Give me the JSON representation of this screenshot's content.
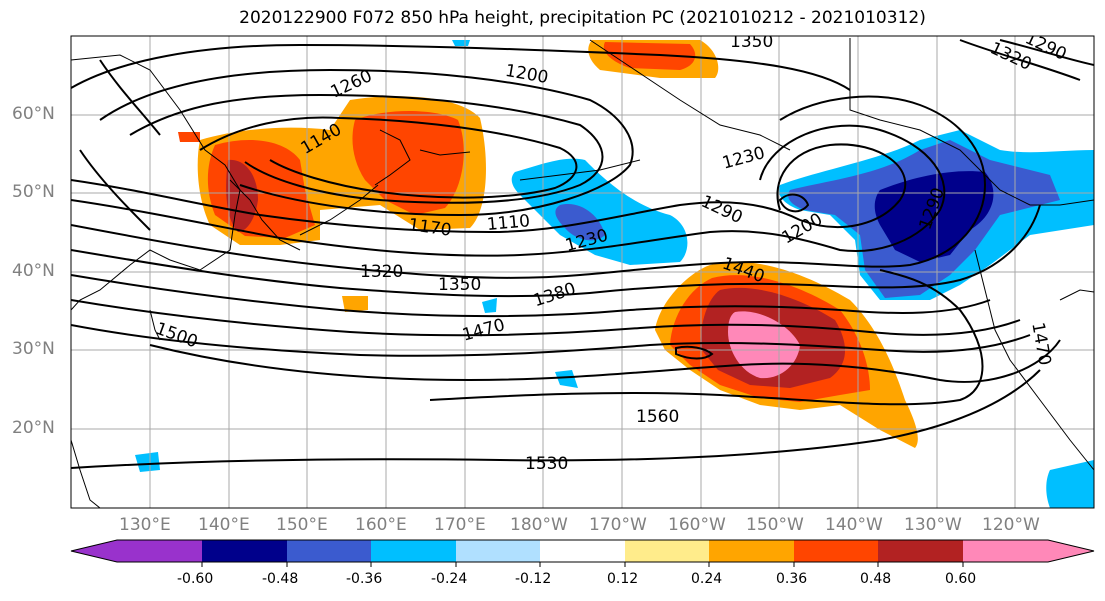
{
  "title": "2020122900 F072 850 hPa height, precipitation PC (2021010212 - 2021010312)",
  "lat_labels": [
    "60°N",
    "50°N",
    "40°N",
    "30°N",
    "20°N"
  ],
  "lon_labels": [
    "130°E",
    "140°E",
    "150°E",
    "160°E",
    "170°E",
    "180°W",
    "170°W",
    "160°W",
    "150°W",
    "140°W",
    "130°W",
    "120°W"
  ],
  "contour_labels": [
    "1260",
    "1200",
    "1350",
    "1290",
    "1320",
    "1140",
    "1230",
    "1170",
    "1110",
    "1230",
    "1290",
    "1200",
    "1320",
    "1350",
    "1380",
    "1440",
    "1470",
    "1500",
    "1560",
    "1530",
    "1470",
    "1290"
  ],
  "colorbar": {
    "ticks": [
      "-0.60",
      "-0.48",
      "-0.36",
      "-0.24",
      "-0.12",
      "0.12",
      "0.24",
      "0.36",
      "0.48",
      "0.60"
    ],
    "colors": [
      "#9932cc",
      "#00008b",
      "#3b5bcf",
      "#00bfff",
      "#b0e0ff",
      "#ffffff",
      "#ffec8b",
      "#ffa500",
      "#ff4500",
      "#b22222",
      "#ff88b8"
    ]
  }
}
